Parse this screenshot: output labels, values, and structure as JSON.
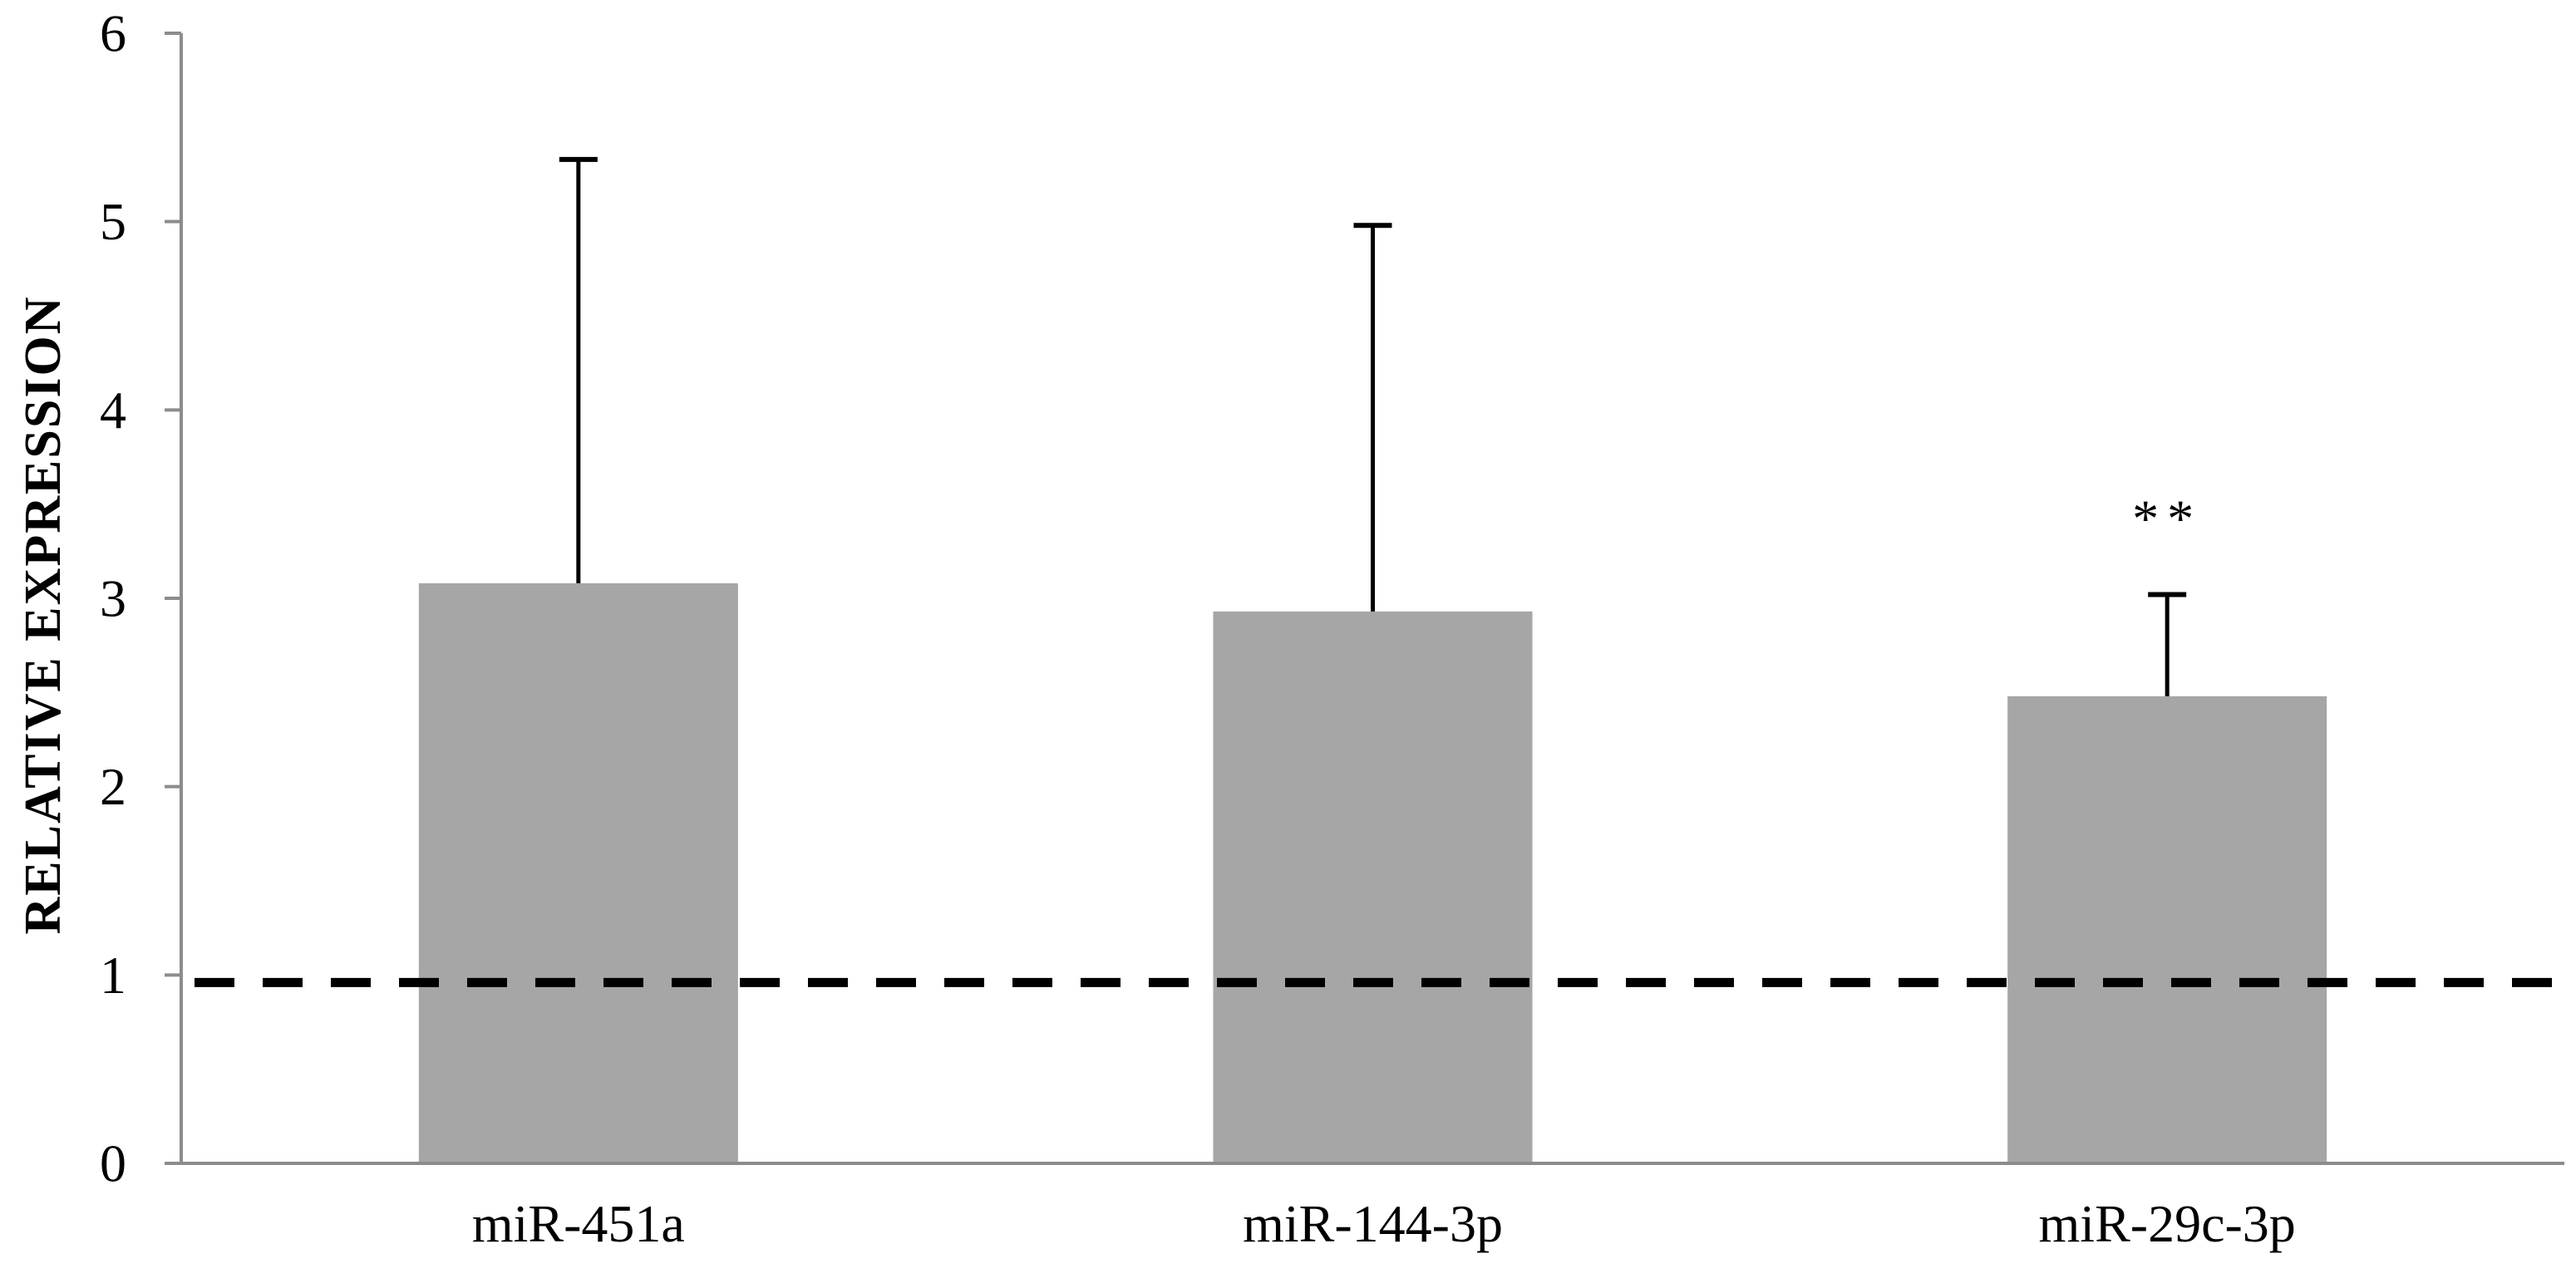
{
  "chart_data": {
    "type": "bar",
    "title": "",
    "xlabel": "",
    "ylabel": "RELATIVE EXPRESSION",
    "ylim": [
      0,
      6
    ],
    "yticks": [
      "0",
      "1",
      "2",
      "3",
      "4",
      "5",
      "6"
    ],
    "categories": [
      "miR-451a",
      "miR-144-3p",
      "miR-29c-3p"
    ],
    "values": [
      3.08,
      2.93,
      2.48
    ],
    "error_upper": [
      5.33,
      4.98,
      3.02
    ],
    "annotations": [
      "",
      "",
      "**"
    ],
    "reference_line": 0.96,
    "grid": false,
    "legend": "none",
    "colors": {
      "bar": "#a6a6a6",
      "axis": "#8c8c8c",
      "error": "#000000",
      "reference": "#000000"
    }
  }
}
